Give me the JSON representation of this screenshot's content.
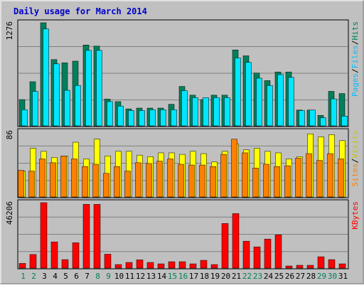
{
  "chart_data": [
    {
      "type": "bar",
      "title": "Daily usage for March 2014",
      "ylabel_parts": [
        "Pages",
        "Files",
        "Hits"
      ],
      "ymax_label": "1276",
      "categories": [
        "1",
        "2",
        "3",
        "4",
        "5",
        "6",
        "7",
        "8",
        "9",
        "10",
        "11",
        "12",
        "13",
        "14",
        "15",
        "16",
        "17",
        "18",
        "19",
        "20",
        "21",
        "22",
        "23",
        "24",
        "25",
        "26",
        "27",
        "28",
        "29",
        "30",
        "31"
      ],
      "weekend_days": [
        "1",
        "2",
        "8",
        "9",
        "15",
        "16",
        "22",
        "23",
        "29",
        "30"
      ],
      "series": [
        {
          "name": "Hits",
          "color": "#00805c",
          "values": [
            325,
            546,
            1276,
            820,
            780,
            801,
            1001,
            987,
            332,
            300,
            210,
            220,
            220,
            220,
            267,
            488,
            380,
            325,
            380,
            380,
            940,
            867,
            654,
            560,
            667,
            667,
            196,
            196,
            130,
            427,
            400
          ]
        },
        {
          "name": "Files",
          "color": "#00e6ff",
          "values": [
            200,
            427,
            1200,
            767,
            440,
            500,
            934,
            934,
            300,
            245,
            190,
            190,
            200,
            200,
            200,
            435,
            350,
            350,
            350,
            350,
            840,
            785,
            590,
            500,
            634,
            600,
            190,
            196,
            100,
            334,
            120
          ]
        },
        {
          "name": "Pages",
          "color": "#0000c8",
          "values": [
            0,
            0,
            0,
            0,
            0,
            0,
            0,
            0,
            0,
            0,
            0,
            0,
            0,
            0,
            0,
            0,
            0,
            0,
            0,
            0,
            0,
            0,
            0,
            0,
            0,
            0,
            0,
            0,
            0,
            0,
            0
          ]
        }
      ]
    },
    {
      "type": "bar",
      "ylabel_parts": [
        "Sites",
        "Visits"
      ],
      "ymax_label": "86",
      "categories": [
        "1",
        "2",
        "3",
        "4",
        "5",
        "6",
        "7",
        "8",
        "9",
        "10",
        "11",
        "12",
        "13",
        "14",
        "15",
        "16",
        "17",
        "18",
        "19",
        "20",
        "21",
        "22",
        "23",
        "24",
        "25",
        "26",
        "27",
        "28",
        "29",
        "30",
        "31"
      ],
      "series": [
        {
          "name": "Visits",
          "color": "#ffff00",
          "values": [
            34,
            64,
            60,
            52,
            54,
            72,
            50,
            76,
            54,
            60,
            60,
            55,
            53,
            58,
            58,
            56,
            60,
            57,
            46,
            60,
            70,
            62,
            64,
            60,
            58,
            50,
            53,
            83,
            79,
            82,
            74
          ]
        },
        {
          "name": "Sites",
          "color": "#ff8000",
          "values": [
            35,
            34,
            50,
            45,
            54,
            50,
            40,
            43,
            31,
            40,
            34,
            45,
            44,
            47,
            50,
            43,
            42,
            42,
            40,
            56,
            76,
            58,
            38,
            43,
            40,
            41,
            51,
            57,
            48,
            57,
            50
          ]
        }
      ]
    },
    {
      "type": "bar",
      "ylabel_parts": [
        "KBytes"
      ],
      "ymax_label": "46206",
      "categories": [
        "1",
        "2",
        "3",
        "4",
        "5",
        "6",
        "7",
        "8",
        "9",
        "10",
        "11",
        "12",
        "13",
        "14",
        "15",
        "16",
        "17",
        "18",
        "19",
        "20",
        "21",
        "22",
        "23",
        "24",
        "25",
        "26",
        "27",
        "28",
        "29",
        "30",
        "31"
      ],
      "series": [
        {
          "name": "KBytes",
          "color": "#ff0000",
          "values": [
            3300,
            9600,
            46206,
            18500,
            6000,
            17900,
            45000,
            45000,
            9800,
            2500,
            4000,
            5800,
            4000,
            3000,
            4500,
            4500,
            3000,
            5500,
            2500,
            31500,
            38500,
            19000,
            15000,
            20500,
            23500,
            1500,
            2000,
            2000,
            8000,
            6000,
            3000
          ]
        }
      ]
    }
  ]
}
